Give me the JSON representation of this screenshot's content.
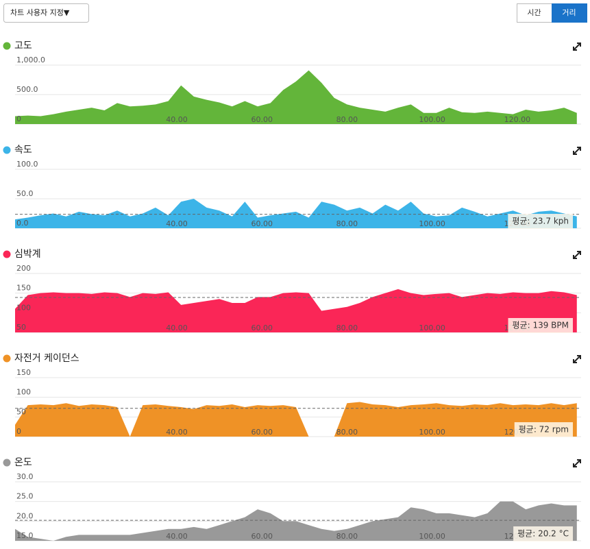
{
  "ui": {
    "dropdown": "차트 사용자 지정▼",
    "toggle": [
      "시간",
      "거리"
    ],
    "active": 1
  },
  "chart_data": [
    {
      "type": "area",
      "title": "고도",
      "color": "#63b53a",
      "x": [
        2,
        5,
        8,
        11,
        14,
        17,
        20,
        23,
        26,
        29,
        32,
        35,
        38,
        41,
        44,
        47,
        50,
        53,
        56,
        59,
        62,
        65,
        68,
        71,
        74,
        77,
        80,
        83,
        86,
        89,
        92,
        95,
        98,
        101,
        104,
        107,
        110,
        113,
        116,
        119,
        122,
        125,
        128,
        131,
        134
      ],
      "values": [
        133,
        144,
        133,
        167,
        211,
        244,
        278,
        233,
        356,
        300,
        311,
        333,
        389,
        656,
        467,
        411,
        367,
        300,
        389,
        300,
        356,
        578,
        722,
        911,
        700,
        444,
        333,
        278,
        244,
        211,
        278,
        333,
        189,
        189,
        278,
        200,
        189,
        211,
        189,
        167,
        244,
        211,
        233,
        278,
        189
      ],
      "xlim": [
        2,
        135
      ],
      "xticks": [
        {
          "value": 40,
          "label": "40.00"
        },
        {
          "value": 60,
          "label": "60.00"
        },
        {
          "value": 80,
          "label": "80.00"
        },
        {
          "value": 100,
          "label": "100.00"
        },
        {
          "value": 120,
          "label": "120.00"
        }
      ],
      "ylim": [
        0,
        1000
      ],
      "yticks": [
        0,
        {
          "value": 500,
          "label": "500.0"
        },
        {
          "value": 1000,
          "label": "1,000.0"
        }
      ],
      "grid": true
    },
    {
      "type": "area",
      "title": "속도",
      "color": "#3cb4e8",
      "x": [
        2,
        5,
        8,
        11,
        14,
        17,
        20,
        23,
        26,
        29,
        32,
        35,
        38,
        41,
        44,
        47,
        50,
        53,
        56,
        59,
        62,
        65,
        68,
        71,
        74,
        77,
        80,
        83,
        86,
        89,
        92,
        95,
        98,
        101,
        104,
        107,
        110,
        113,
        116,
        119,
        122,
        125,
        128,
        131,
        134
      ],
      "values": [
        15,
        18,
        22,
        25,
        20,
        28,
        24,
        22,
        30,
        20,
        25,
        35,
        22,
        45,
        50,
        35,
        30,
        20,
        45,
        18,
        22,
        25,
        28,
        18,
        45,
        40,
        30,
        35,
        25,
        40,
        30,
        45,
        25,
        20,
        22,
        35,
        28,
        20,
        25,
        30,
        22,
        28,
        30,
        25,
        20
      ],
      "xlim": [
        2,
        135
      ],
      "xticks": [
        {
          "value": 40,
          "label": "40.00"
        },
        {
          "value": 60,
          "label": "60.00"
        },
        {
          "value": 80,
          "label": "80.00"
        },
        {
          "value": 100,
          "label": "100.00"
        },
        {
          "value": 120,
          "label": "120.00"
        }
      ],
      "ylim": [
        0,
        100
      ],
      "yticks": [
        {
          "value": 0,
          "label": "0.0"
        },
        {
          "value": 50,
          "label": "50.0"
        },
        {
          "value": 100,
          "label": "100.0"
        }
      ],
      "grid": true,
      "average": {
        "value": 23.7,
        "label": "평균: 23.7 kph"
      }
    },
    {
      "type": "area",
      "title": "심박계",
      "color": "#fa2657",
      "x": [
        2,
        5,
        8,
        11,
        14,
        17,
        20,
        23,
        26,
        29,
        32,
        35,
        38,
        41,
        44,
        47,
        50,
        53,
        56,
        59,
        62,
        65,
        68,
        71,
        74,
        77,
        80,
        83,
        86,
        89,
        92,
        95,
        98,
        101,
        104,
        107,
        110,
        113,
        116,
        119,
        122,
        125,
        128,
        131,
        134
      ],
      "values": [
        110,
        145,
        150,
        152,
        150,
        150,
        148,
        152,
        150,
        140,
        150,
        148,
        152,
        120,
        125,
        130,
        135,
        125,
        125,
        140,
        140,
        150,
        152,
        150,
        105,
        110,
        115,
        125,
        140,
        150,
        160,
        150,
        145,
        148,
        150,
        140,
        145,
        150,
        148,
        152,
        150,
        150,
        155,
        152,
        145
      ],
      "xlim": [
        2,
        135
      ],
      "xticks": [
        {
          "value": 40,
          "label": "40.00"
        },
        {
          "value": 60,
          "label": "60.00"
        },
        {
          "value": 80,
          "label": "80.00"
        },
        {
          "value": 100,
          "label": "100.00"
        },
        {
          "value": 120,
          "label": "120.00"
        }
      ],
      "ylim": [
        50,
        200
      ],
      "yticks": [
        50,
        100,
        150,
        200
      ],
      "grid": true,
      "average": {
        "value": 139,
        "label": "평균: 139 BPM"
      }
    },
    {
      "type": "area",
      "title": "자전거 케이던스",
      "color": "#ef9226",
      "x": [
        2,
        5,
        8,
        11,
        14,
        17,
        20,
        23,
        26,
        29,
        32,
        35,
        38,
        41,
        44,
        47,
        50,
        53,
        56,
        59,
        62,
        65,
        68,
        71,
        74,
        77,
        80,
        83,
        86,
        89,
        92,
        95,
        98,
        101,
        104,
        107,
        110,
        113,
        116,
        119,
        122,
        125,
        128,
        131,
        134
      ],
      "values": [
        30,
        80,
        82,
        80,
        85,
        78,
        82,
        80,
        75,
        0,
        80,
        82,
        78,
        75,
        70,
        80,
        78,
        82,
        75,
        80,
        78,
        80,
        75,
        0,
        0,
        0,
        85,
        88,
        82,
        80,
        75,
        80,
        82,
        85,
        80,
        78,
        82,
        80,
        85,
        80,
        82,
        80,
        85,
        80,
        85
      ],
      "xlim": [
        2,
        135
      ],
      "xticks": [
        {
          "value": 40,
          "label": "40.00"
        },
        {
          "value": 60,
          "label": "60.00"
        },
        {
          "value": 80,
          "label": "80.00"
        },
        {
          "value": 100,
          "label": "100.00"
        },
        {
          "value": 120,
          "label": "120.00"
        }
      ],
      "ylim": [
        0,
        150
      ],
      "yticks": [
        0,
        50,
        100,
        150
      ],
      "grid": true,
      "average": {
        "value": 72,
        "label": "평균: 72 rpm"
      }
    },
    {
      "type": "area",
      "title": "온도",
      "color": "#999999",
      "x": [
        2,
        5,
        8,
        11,
        14,
        17,
        20,
        23,
        26,
        29,
        32,
        35,
        38,
        41,
        44,
        47,
        50,
        53,
        56,
        59,
        62,
        65,
        68,
        71,
        74,
        77,
        80,
        83,
        86,
        89,
        92,
        95,
        98,
        101,
        104,
        107,
        110,
        113,
        116,
        119,
        122,
        125,
        128,
        131,
        134
      ],
      "values": [
        18,
        16,
        15.5,
        15,
        16,
        16.5,
        16.5,
        16.5,
        16.5,
        16.5,
        17,
        17.5,
        18,
        18,
        18.5,
        18,
        19,
        20,
        21,
        23,
        22,
        20,
        20,
        19,
        18,
        17.5,
        18,
        19,
        20,
        20.5,
        21,
        23.5,
        23,
        22,
        22,
        21.5,
        21,
        22,
        25,
        25,
        23,
        24,
        24.5,
        24,
        24
      ],
      "xlim": [
        2,
        135
      ],
      "xticks": [
        {
          "value": 40,
          "label": "40.00"
        },
        {
          "value": 60,
          "label": "60.00"
        },
        {
          "value": 80,
          "label": "80.00"
        },
        {
          "value": 100,
          "label": "100.00"
        },
        {
          "value": 120,
          "label": "120.00"
        }
      ],
      "ylim": [
        15,
        30
      ],
      "yticks": [
        {
          "value": 15,
          "label": "15.0"
        },
        {
          "value": 20,
          "label": "20.0"
        },
        {
          "value": 25,
          "label": "25.0"
        },
        {
          "value": 30,
          "label": "30.0"
        }
      ],
      "grid": true,
      "average": {
        "value": 20.2,
        "label": "평균: 20.2 °C"
      }
    }
  ]
}
